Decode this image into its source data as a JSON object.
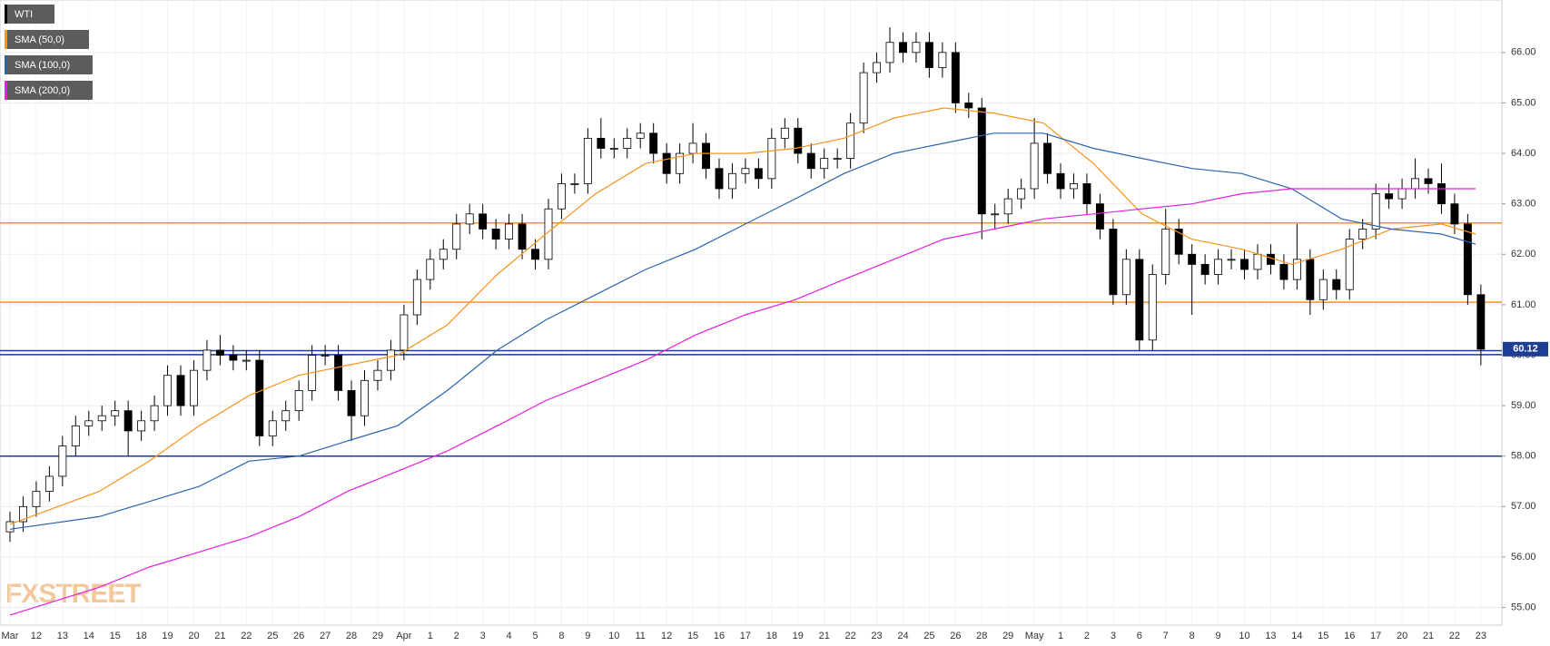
{
  "chart_data": {
    "type": "candlestick",
    "categories": [
      "Mar",
      "12",
      "13",
      "14",
      "15",
      "18",
      "19",
      "20",
      "21",
      "22",
      "25",
      "26",
      "27",
      "28",
      "29",
      "Apr",
      "1",
      "2",
      "3",
      "4",
      "5",
      "8",
      "9",
      "10",
      "11",
      "12",
      "15",
      "16",
      "17",
      "18",
      "19",
      "21",
      "22",
      "23",
      "24",
      "25",
      "26",
      "28",
      "29",
      "May",
      "1",
      "2",
      "3",
      "6",
      "7",
      "8",
      "9",
      "10",
      "13",
      "14",
      "15",
      "16",
      "17",
      "20",
      "21",
      "22",
      "23"
    ],
    "xlim": [
      -0.76,
      113.6
    ],
    "ylim": [
      54.65,
      67.04
    ],
    "yticks": [
      {
        "value": 55,
        "label": "55.00"
      },
      {
        "value": 56,
        "label": "56.00"
      },
      {
        "value": 57,
        "label": "57.00"
      },
      {
        "value": 58,
        "label": "58.00"
      },
      {
        "value": 59,
        "label": "59.00"
      },
      {
        "value": 60,
        "label": "60.00"
      },
      {
        "value": 61,
        "label": "61.00"
      },
      {
        "value": 62,
        "label": "62.00"
      },
      {
        "value": 63,
        "label": "63.00"
      },
      {
        "value": 64,
        "label": "64.00"
      },
      {
        "value": 65,
        "label": "65.00"
      },
      {
        "value": 66,
        "label": "66.00"
      }
    ],
    "grid": true,
    "up_color": "#ffffff",
    "x": [
      0,
      6.8,
      10.6,
      14.4,
      18.2,
      22,
      25.7,
      29.5,
      33.3,
      37.1,
      40.8,
      44.6,
      48.4,
      52.2,
      56,
      59.8,
      63.5,
      67.3,
      71.1,
      74.9,
      78.7,
      82.5,
      86.2,
      90,
      93.8,
      97.6,
      101.4,
      105.2,
      109,
      111.6
    ],
    "series": [
      {
        "name": "WTI",
        "color": "#000000",
        "ohlc": [
          [
            56.5,
            56.9,
            56.3,
            56.7
          ],
          [
            56.7,
            57.2,
            56.5,
            57.0
          ],
          [
            57.0,
            57.5,
            56.8,
            57.3
          ],
          [
            57.3,
            57.8,
            57.1,
            57.6
          ],
          [
            57.6,
            58.4,
            57.4,
            58.2
          ],
          [
            58.2,
            58.8,
            58.0,
            58.6
          ],
          [
            58.6,
            58.9,
            58.4,
            58.7
          ],
          [
            58.7,
            59.0,
            58.5,
            58.8
          ],
          [
            58.8,
            59.1,
            58.6,
            58.9
          ],
          [
            58.9,
            59.1,
            58.0,
            58.5
          ],
          [
            58.5,
            58.9,
            58.3,
            58.7
          ],
          [
            58.7,
            59.2,
            58.5,
            59.0
          ],
          [
            59.0,
            59.8,
            58.8,
            59.6
          ],
          [
            59.6,
            59.8,
            58.8,
            59.0
          ],
          [
            59.0,
            59.9,
            58.8,
            59.7
          ],
          [
            59.7,
            60.3,
            59.5,
            60.1
          ],
          [
            60.1,
            60.4,
            59.8,
            60.0
          ],
          [
            60.0,
            60.2,
            59.7,
            59.9
          ],
          [
            59.9,
            60.1,
            59.7,
            59.9
          ],
          [
            59.9,
            60.1,
            58.2,
            58.4
          ],
          [
            58.4,
            58.9,
            58.2,
            58.7
          ],
          [
            58.7,
            59.1,
            58.5,
            58.9
          ],
          [
            58.9,
            59.5,
            58.7,
            59.3
          ],
          [
            59.3,
            60.2,
            59.1,
            60.0
          ],
          [
            60.0,
            60.2,
            59.8,
            60.0
          ],
          [
            60.0,
            60.2,
            59.1,
            59.3
          ],
          [
            59.3,
            59.5,
            58.3,
            58.8
          ],
          [
            58.8,
            59.7,
            58.6,
            59.5
          ],
          [
            59.5,
            59.9,
            59.3,
            59.7
          ],
          [
            59.7,
            60.3,
            59.5,
            60.1
          ],
          [
            60.1,
            61.0,
            59.9,
            60.8
          ],
          [
            60.8,
            61.7,
            60.6,
            61.5
          ],
          [
            61.5,
            62.1,
            61.3,
            61.9
          ],
          [
            61.9,
            62.3,
            61.7,
            62.1
          ],
          [
            62.1,
            62.8,
            61.9,
            62.6
          ],
          [
            62.6,
            63.0,
            62.4,
            62.8
          ],
          [
            62.8,
            63.0,
            62.3,
            62.5
          ],
          [
            62.5,
            62.7,
            62.1,
            62.3
          ],
          [
            62.3,
            62.8,
            62.1,
            62.6
          ],
          [
            62.6,
            62.8,
            61.9,
            62.1
          ],
          [
            62.1,
            62.3,
            61.7,
            61.9
          ],
          [
            61.9,
            63.1,
            61.7,
            62.9
          ],
          [
            62.9,
            63.6,
            62.7,
            63.4
          ],
          [
            63.4,
            63.6,
            63.2,
            63.4
          ],
          [
            63.4,
            64.5,
            63.2,
            64.3
          ],
          [
            64.3,
            64.7,
            63.9,
            64.1
          ],
          [
            64.1,
            64.3,
            63.9,
            64.1
          ],
          [
            64.1,
            64.5,
            63.9,
            64.3
          ],
          [
            64.3,
            64.6,
            64.1,
            64.4
          ],
          [
            64.4,
            64.6,
            63.8,
            64.0
          ],
          [
            64.0,
            64.2,
            63.4,
            63.6
          ],
          [
            63.6,
            64.2,
            63.4,
            64.0
          ],
          [
            64.0,
            64.6,
            63.8,
            64.2
          ],
          [
            64.2,
            64.4,
            63.5,
            63.7
          ],
          [
            63.7,
            63.9,
            63.1,
            63.3
          ],
          [
            63.3,
            63.8,
            63.1,
            63.6
          ],
          [
            63.6,
            63.9,
            63.4,
            63.7
          ],
          [
            63.7,
            63.9,
            63.3,
            63.5
          ],
          [
            63.5,
            64.5,
            63.3,
            64.3
          ],
          [
            64.3,
            64.7,
            64.1,
            64.5
          ],
          [
            64.5,
            64.7,
            63.8,
            64.0
          ],
          [
            64.0,
            64.2,
            63.5,
            63.7
          ],
          [
            63.7,
            64.1,
            63.5,
            63.9
          ],
          [
            63.9,
            64.1,
            63.7,
            63.9
          ],
          [
            63.9,
            64.8,
            63.7,
            64.6
          ],
          [
            64.6,
            65.8,
            64.4,
            65.6
          ],
          [
            65.6,
            66.0,
            65.4,
            65.8
          ],
          [
            65.8,
            66.5,
            65.6,
            66.2
          ],
          [
            66.2,
            66.4,
            65.8,
            66.0
          ],
          [
            66.0,
            66.4,
            65.8,
            66.2
          ],
          [
            66.2,
            66.4,
            65.5,
            65.7
          ],
          [
            65.7,
            66.2,
            65.5,
            66.0
          ],
          [
            66.0,
            66.2,
            64.8,
            65.0
          ],
          [
            65.0,
            65.2,
            64.7,
            64.9
          ],
          [
            64.9,
            65.1,
            62.3,
            62.8
          ],
          [
            62.8,
            63.0,
            62.5,
            62.8
          ],
          [
            62.8,
            63.3,
            62.6,
            63.1
          ],
          [
            63.1,
            63.5,
            62.9,
            63.3
          ],
          [
            63.3,
            64.7,
            63.1,
            64.2
          ],
          [
            64.2,
            64.4,
            63.4,
            63.6
          ],
          [
            63.6,
            63.8,
            63.1,
            63.3
          ],
          [
            63.3,
            63.6,
            63.1,
            63.4
          ],
          [
            63.4,
            63.6,
            62.8,
            63.0
          ],
          [
            63.0,
            63.2,
            62.3,
            62.5
          ],
          [
            62.5,
            62.7,
            61.0,
            61.2
          ],
          [
            61.2,
            62.1,
            61.0,
            61.9
          ],
          [
            61.9,
            62.1,
            60.1,
            60.3
          ],
          [
            60.3,
            61.8,
            60.1,
            61.6
          ],
          [
            61.6,
            62.9,
            61.4,
            62.5
          ],
          [
            62.5,
            62.7,
            61.8,
            62.0
          ],
          [
            62.0,
            62.2,
            60.8,
            61.8
          ],
          [
            61.8,
            62.0,
            61.4,
            61.6
          ],
          [
            61.6,
            62.1,
            61.4,
            61.9
          ],
          [
            61.9,
            62.1,
            61.7,
            61.9
          ],
          [
            61.9,
            62.1,
            61.5,
            61.7
          ],
          [
            61.7,
            62.2,
            61.5,
            62.0
          ],
          [
            62.0,
            62.2,
            61.6,
            61.8
          ],
          [
            61.8,
            62.0,
            61.3,
            61.5
          ],
          [
            61.5,
            62.6,
            61.3,
            61.9
          ],
          [
            61.9,
            62.1,
            60.8,
            61.1
          ],
          [
            61.1,
            61.7,
            60.9,
            61.5
          ],
          [
            61.5,
            61.7,
            61.1,
            61.3
          ],
          [
            61.3,
            62.5,
            61.1,
            62.3
          ],
          [
            62.3,
            62.7,
            62.1,
            62.5
          ],
          [
            62.5,
            63.4,
            62.3,
            63.2
          ],
          [
            63.2,
            63.4,
            62.9,
            63.1
          ],
          [
            63.1,
            63.5,
            62.9,
            63.3
          ],
          [
            63.3,
            63.9,
            63.1,
            63.5
          ],
          [
            63.5,
            63.7,
            63.2,
            63.4
          ],
          [
            63.4,
            63.8,
            62.8,
            63.0
          ],
          [
            63.0,
            63.2,
            62.4,
            62.6
          ],
          [
            62.6,
            62.8,
            61.0,
            61.2
          ],
          [
            61.2,
            61.4,
            59.8,
            60.12
          ]
        ]
      },
      {
        "name": "SMA (50,0)",
        "color": "#f7931e",
        "values": [
          56.65,
          57.3,
          57.9,
          58.6,
          59.2,
          59.6,
          59.8,
          60.0,
          60.6,
          61.6,
          62.4,
          63.2,
          63.8,
          64.0,
          64.0,
          64.1,
          64.3,
          64.7,
          64.9,
          64.8,
          64.6,
          63.8,
          62.8,
          62.3,
          62.1,
          61.8,
          62.1,
          62.5,
          62.6,
          62.4
        ]
      },
      {
        "name": "SMA (100,0)",
        "color": "#2a64b0",
        "values": [
          56.55,
          56.8,
          57.1,
          57.4,
          57.9,
          58.0,
          58.3,
          58.6,
          59.3,
          60.1,
          60.7,
          61.2,
          61.7,
          62.1,
          62.6,
          63.1,
          63.6,
          64.0,
          64.2,
          64.4,
          64.4,
          64.1,
          63.9,
          63.7,
          63.6,
          63.3,
          62.7,
          62.5,
          62.4,
          62.2
        ]
      },
      {
        "name": "SMA (200,0)",
        "color": "#e61ee0",
        "values": [
          54.85,
          55.4,
          55.8,
          56.1,
          56.4,
          56.8,
          57.3,
          57.7,
          58.1,
          58.6,
          59.1,
          59.5,
          59.9,
          60.4,
          60.8,
          61.1,
          61.5,
          61.9,
          62.3,
          62.5,
          62.7,
          62.8,
          62.9,
          63.0,
          63.2,
          63.3,
          63.3,
          63.3,
          63.3,
          63.3
        ]
      }
    ],
    "levels": [
      {
        "value": 62.62,
        "color": "#f7931e"
      },
      {
        "value": 61.05,
        "color": "#f7931e"
      },
      {
        "value": 60.09,
        "color": "#1c3f94"
      },
      {
        "value": 60.01,
        "color": "#1c3f94"
      },
      {
        "value": 58.0,
        "color": "#1c3f94"
      }
    ],
    "last_price": 60.12,
    "last_price_color": "#1c3f94",
    "watermark": "FXSTREET"
  }
}
